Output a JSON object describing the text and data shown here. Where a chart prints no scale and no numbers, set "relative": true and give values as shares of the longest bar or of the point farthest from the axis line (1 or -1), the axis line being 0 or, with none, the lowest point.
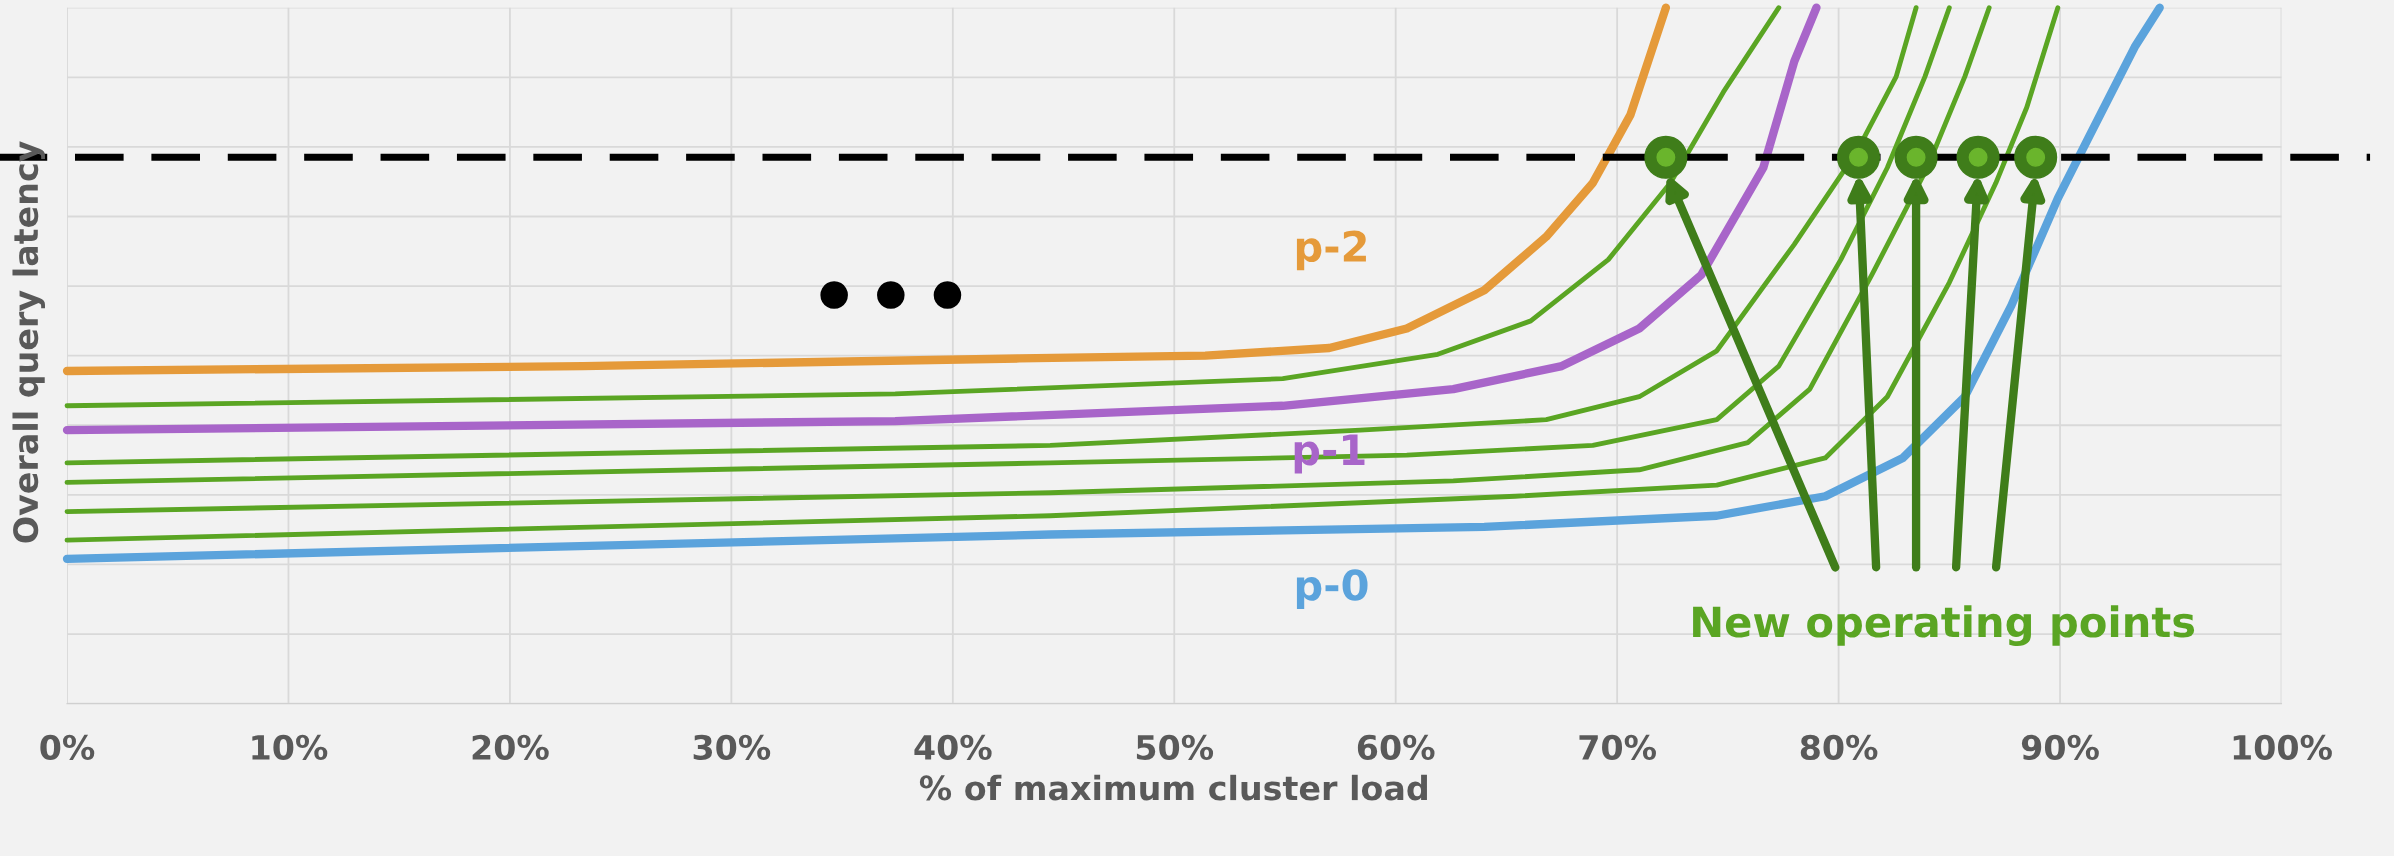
{
  "chart_data": {
    "type": "line",
    "relative": true,
    "xlabel": "% of maximum cluster load",
    "ylabel": "Overall query latency",
    "xlim": [
      0,
      100
    ],
    "xticks": [
      {
        "value": 0,
        "label": "0%"
      },
      {
        "value": 10,
        "label": "10%"
      },
      {
        "value": 20,
        "label": "20%"
      },
      {
        "value": 30,
        "label": "30%"
      },
      {
        "value": 40,
        "label": "40%"
      },
      {
        "value": 50,
        "label": "50%"
      },
      {
        "value": 60,
        "label": "60%"
      },
      {
        "value": 70,
        "label": "70%"
      },
      {
        "value": 80,
        "label": "80%"
      },
      {
        "value": 90,
        "label": "90%"
      },
      {
        "value": 100,
        "label": "100%"
      }
    ],
    "grid": true,
    "tick_labels": "x",
    "line_style": "solid",
    "marker": "none",
    "series": [
      {
        "name": "p-2",
        "color": "#e59a3a",
        "x": [
          0,
          23.3,
          43.0,
          51.4,
          57.0,
          60.5,
          64.0,
          66.8,
          68.9,
          70.6,
          72.2
        ],
        "values": [
          0.478,
          0.485,
          0.496,
          0.5,
          0.511,
          0.539,
          0.594,
          0.671,
          0.748,
          0.846,
          1.0
        ]
      },
      {
        "color": "#5aa523",
        "x": [
          0,
          37.4,
          54.9,
          61.9,
          66.1,
          69.6,
          72.4,
          74.8,
          77.3
        ],
        "values": [
          0.428,
          0.445,
          0.467,
          0.502,
          0.55,
          0.638,
          0.748,
          0.879,
          1.0
        ]
      },
      {
        "name": "p-1",
        "color": "#a865c9",
        "x": [
          0,
          37.4,
          54.9,
          62.6,
          67.5,
          71.0,
          73.8,
          76.6,
          78.0,
          79.0
        ],
        "values": [
          0.393,
          0.406,
          0.428,
          0.452,
          0.485,
          0.539,
          0.616,
          0.77,
          0.923,
          1.0
        ]
      },
      {
        "color": "#5aa523",
        "x": [
          0,
          44.4,
          58.4,
          66.8,
          71.0,
          74.5,
          78.0,
          80.8,
          82.6,
          83.5
        ],
        "values": [
          0.346,
          0.371,
          0.393,
          0.408,
          0.441,
          0.507,
          0.66,
          0.792,
          0.901,
          1.0
        ]
      },
      {
        "color": "#5aa523",
        "x": [
          0,
          44.4,
          60.5,
          68.9,
          74.5,
          77.3,
          80.1,
          82.2,
          83.9,
          85.0
        ],
        "values": [
          0.318,
          0.346,
          0.357,
          0.371,
          0.408,
          0.485,
          0.638,
          0.77,
          0.901,
          1.0
        ]
      },
      {
        "color": "#5aa523",
        "x": [
          0,
          44.4,
          62.6,
          71.0,
          75.9,
          78.7,
          81.5,
          84.0,
          85.7,
          86.8
        ],
        "values": [
          0.276,
          0.303,
          0.32,
          0.336,
          0.375,
          0.452,
          0.616,
          0.77,
          0.901,
          1.0
        ]
      },
      {
        "color": "#5aa523",
        "x": [
          0,
          44.4,
          65.4,
          74.5,
          79.4,
          82.2,
          85.0,
          87.1,
          88.5,
          89.9
        ],
        "values": [
          0.235,
          0.27,
          0.298,
          0.314,
          0.353,
          0.441,
          0.605,
          0.748,
          0.857,
          1.0
        ]
      },
      {
        "name": "p-0",
        "color": "#5ba3dc",
        "x": [
          0,
          44.4,
          64.0,
          74.5,
          79.4,
          82.9,
          85.7,
          87.8,
          89.9,
          91.3,
          93.4,
          94.5
        ],
        "values": [
          0.208,
          0.243,
          0.254,
          0.27,
          0.298,
          0.353,
          0.441,
          0.572,
          0.726,
          0.814,
          0.945,
          1.0
        ]
      },
      {
        "type": "scatter",
        "marker": "circle",
        "color": "#3f7d1a",
        "x": [
          72.2,
          80.9,
          83.5,
          86.3,
          88.9
        ],
        "values": [
          0.785,
          0.785,
          0.785,
          0.785,
          0.785
        ]
      }
    ],
    "ref_lines": [
      {
        "axis": "y",
        "value": 0.785,
        "color": "#000000",
        "line_style": "dashed"
      }
    ],
    "annotations": [
      "New operating points",
      "●  ●  ●"
    ]
  }
}
